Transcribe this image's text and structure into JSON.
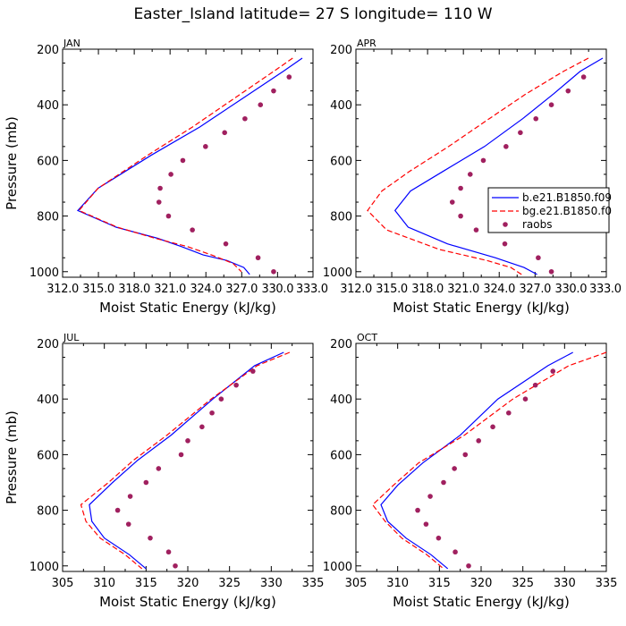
{
  "figure": {
    "title": "Easter_Island   latitude= 27 S longitude= 110 W"
  },
  "colors": {
    "model_b": "#0000ff",
    "model_bg": "#ff0000",
    "raobs": "#a0205f"
  },
  "chart_data": [
    {
      "type": "line",
      "panel_label": "JAN",
      "xlabel": "Moist Static Energy (kJ/kg)",
      "ylabel": "Pressure (mb)",
      "xlim": [
        312.03,
        333.0
      ],
      "ylim": [
        1020,
        200
      ],
      "xticks": [
        312.03,
        315.03,
        318.03,
        321.03,
        324.03,
        327.03,
        330.03,
        333.0
      ],
      "xtick_labels": [
        "312.0",
        "315.0",
        "318.0",
        "321.0",
        "324.0",
        "327.0",
        "330.0",
        "333.0"
      ],
      "x_label_style": "run-together",
      "yticks": [
        200,
        400,
        600,
        800,
        1000
      ],
      "ytick_labels": [
        "200",
        "400",
        "600",
        "800",
        "1000"
      ],
      "series": [
        {
          "key": "b",
          "style": "solid",
          "x": [
            332.1,
            330.5,
            327.0,
            323.5,
            319.5,
            315.0,
            313.3,
            316.5,
            320.0,
            322.0,
            323.8,
            325.8,
            327.2,
            327.7
          ],
          "y": [
            232,
            280,
            380,
            480,
            580,
            700,
            780,
            840,
            880,
            910,
            940,
            960,
            985,
            1010
          ]
        },
        {
          "key": "bg",
          "style": "dashed",
          "x": [
            331.3,
            329.7,
            326.3,
            322.9,
            319.2,
            315.0,
            313.4,
            316.6,
            319.8,
            322.5,
            324.5,
            326.3,
            327.0
          ],
          "y": [
            232,
            280,
            380,
            480,
            580,
            700,
            780,
            840,
            880,
            910,
            940,
            970,
            1000
          ]
        },
        {
          "key": "raobs",
          "style": "dots",
          "x": [
            331.0,
            329.7,
            328.6,
            327.3,
            325.6,
            324.0,
            322.1,
            321.1,
            320.2,
            320.1,
            320.9,
            322.9,
            325.7,
            328.4,
            329.7
          ],
          "y": [
            300,
            350,
            400,
            450,
            500,
            550,
            600,
            650,
            700,
            750,
            800,
            850,
            900,
            950,
            1000
          ]
        }
      ]
    },
    {
      "type": "line",
      "panel_label": "APR",
      "xlabel": "Moist Static Energy (kJ/kg)",
      "ylabel": "",
      "xlim": [
        312.03,
        333.0
      ],
      "ylim": [
        1020,
        200
      ],
      "xticks": [
        312.03,
        315.03,
        318.03,
        321.03,
        324.03,
        327.03,
        330.03,
        333.0
      ],
      "xtick_labels": [
        "312.0",
        "315.0",
        "318.0",
        "321.0",
        "324.0",
        "327.0",
        "330.0",
        "333.0"
      ],
      "x_label_style": "run-together",
      "yticks": [
        200,
        400,
        600,
        800,
        1000
      ],
      "ytick_labels": [
        "200",
        "400",
        "600",
        "800",
        "1000"
      ],
      "legend": {
        "position": "right",
        "entries": [
          {
            "key": "b",
            "label": "b.e21.B1850.f09"
          },
          {
            "key": "bg",
            "label": "bg.e21.B1850.f0"
          },
          {
            "key": "raobs",
            "label": "raobs"
          }
        ]
      },
      "series": [
        {
          "key": "b",
          "style": "solid",
          "x": [
            332.7,
            330.8,
            328.6,
            326.0,
            322.8,
            319.3,
            316.6,
            315.3,
            316.4,
            319.7,
            323.7,
            326.1,
            327.2
          ],
          "y": [
            232,
            280,
            360,
            450,
            550,
            640,
            710,
            780,
            840,
            900,
            950,
            985,
            1010
          ]
        },
        {
          "key": "bg",
          "style": "dashed",
          "x": [
            331.5,
            329.4,
            326.3,
            323.2,
            319.8,
            316.5,
            314.2,
            313.0,
            314.6,
            319.0,
            323.0,
            325.0,
            325.9
          ],
          "y": [
            232,
            280,
            360,
            450,
            550,
            640,
            710,
            780,
            850,
            920,
            960,
            985,
            1010
          ]
        },
        {
          "key": "raobs",
          "style": "dots",
          "x": [
            331.1,
            329.8,
            328.4,
            327.1,
            325.8,
            324.6,
            322.7,
            321.6,
            320.8,
            320.1,
            320.8,
            322.1,
            324.5,
            327.3,
            328.4
          ],
          "y": [
            300,
            350,
            400,
            450,
            500,
            550,
            600,
            650,
            700,
            750,
            800,
            850,
            900,
            950,
            1000
          ]
        }
      ]
    },
    {
      "type": "line",
      "panel_label": "JUL",
      "xlabel": "Moist Static Energy (kJ/kg)",
      "ylabel": "Pressure (mb)",
      "xlim": [
        305,
        335
      ],
      "ylim": [
        1020,
        200
      ],
      "xticks": [
        305,
        310,
        315,
        320,
        325,
        330,
        335
      ],
      "xtick_labels": [
        "305",
        "310",
        "315",
        "320",
        "325",
        "330",
        "335"
      ],
      "yticks": [
        200,
        400,
        600,
        800,
        1000
      ],
      "ytick_labels": [
        "200",
        "400",
        "600",
        "800",
        "1000"
      ],
      "series": [
        {
          "key": "b",
          "style": "solid",
          "x": [
            331.5,
            328.0,
            323.0,
            318.0,
            314.0,
            311.0,
            308.2,
            308.5,
            310.0,
            313.0,
            315.0
          ],
          "y": [
            232,
            280,
            400,
            530,
            620,
            700,
            780,
            840,
            900,
            960,
            1010
          ]
        },
        {
          "key": "bg",
          "style": "dashed",
          "x": [
            332.2,
            328.3,
            322.8,
            317.5,
            313.5,
            310.5,
            307.2,
            307.8,
            309.5,
            312.5,
            314.5
          ],
          "y": [
            232,
            280,
            400,
            530,
            620,
            700,
            780,
            840,
            900,
            960,
            1010
          ]
        },
        {
          "key": "raobs",
          "style": "dots",
          "x": [
            327.8,
            325.8,
            324.0,
            322.9,
            321.7,
            320.0,
            319.2,
            316.5,
            315.0,
            313.1,
            311.6,
            312.9,
            315.5,
            317.7,
            318.5
          ],
          "y": [
            300,
            350,
            400,
            450,
            500,
            550,
            600,
            650,
            700,
            750,
            800,
            850,
            900,
            950,
            1000
          ]
        }
      ]
    },
    {
      "type": "line",
      "panel_label": "OCT",
      "xlabel": "Moist Static Energy (kJ/kg)",
      "ylabel": "",
      "xlim": [
        305,
        335
      ],
      "ylim": [
        1020,
        200
      ],
      "xticks": [
        305,
        310,
        315,
        320,
        325,
        330,
        335
      ],
      "xtick_labels": [
        "305",
        "310",
        "315",
        "320",
        "325",
        "330",
        "335"
      ],
      "yticks": [
        200,
        400,
        600,
        800,
        1000
      ],
      "ytick_labels": [
        "200",
        "400",
        "600",
        "800",
        "1000"
      ],
      "series": [
        {
          "key": "b",
          "style": "solid",
          "x": [
            331.0,
            328.0,
            322.0,
            317.5,
            313.0,
            310.0,
            308.0,
            308.8,
            311.0,
            314.0,
            316.0
          ],
          "y": [
            232,
            280,
            400,
            530,
            630,
            710,
            780,
            840,
            900,
            960,
            1010
          ]
        },
        {
          "key": "bg",
          "style": "dashed",
          "x": [
            335.0,
            330.5,
            323.8,
            318.0,
            312.5,
            309.5,
            307.0,
            308.5,
            310.5,
            313.5,
            315.5
          ],
          "y": [
            232,
            280,
            400,
            530,
            630,
            710,
            780,
            840,
            900,
            960,
            1010
          ]
        },
        {
          "key": "raobs",
          "style": "dots",
          "x": [
            328.6,
            326.5,
            325.3,
            323.3,
            321.4,
            319.7,
            318.1,
            316.8,
            315.5,
            313.9,
            312.4,
            313.4,
            314.9,
            316.9,
            318.5
          ],
          "y": [
            300,
            350,
            400,
            450,
            500,
            550,
            600,
            650,
            700,
            750,
            800,
            850,
            900,
            950,
            1000
          ]
        }
      ]
    }
  ]
}
